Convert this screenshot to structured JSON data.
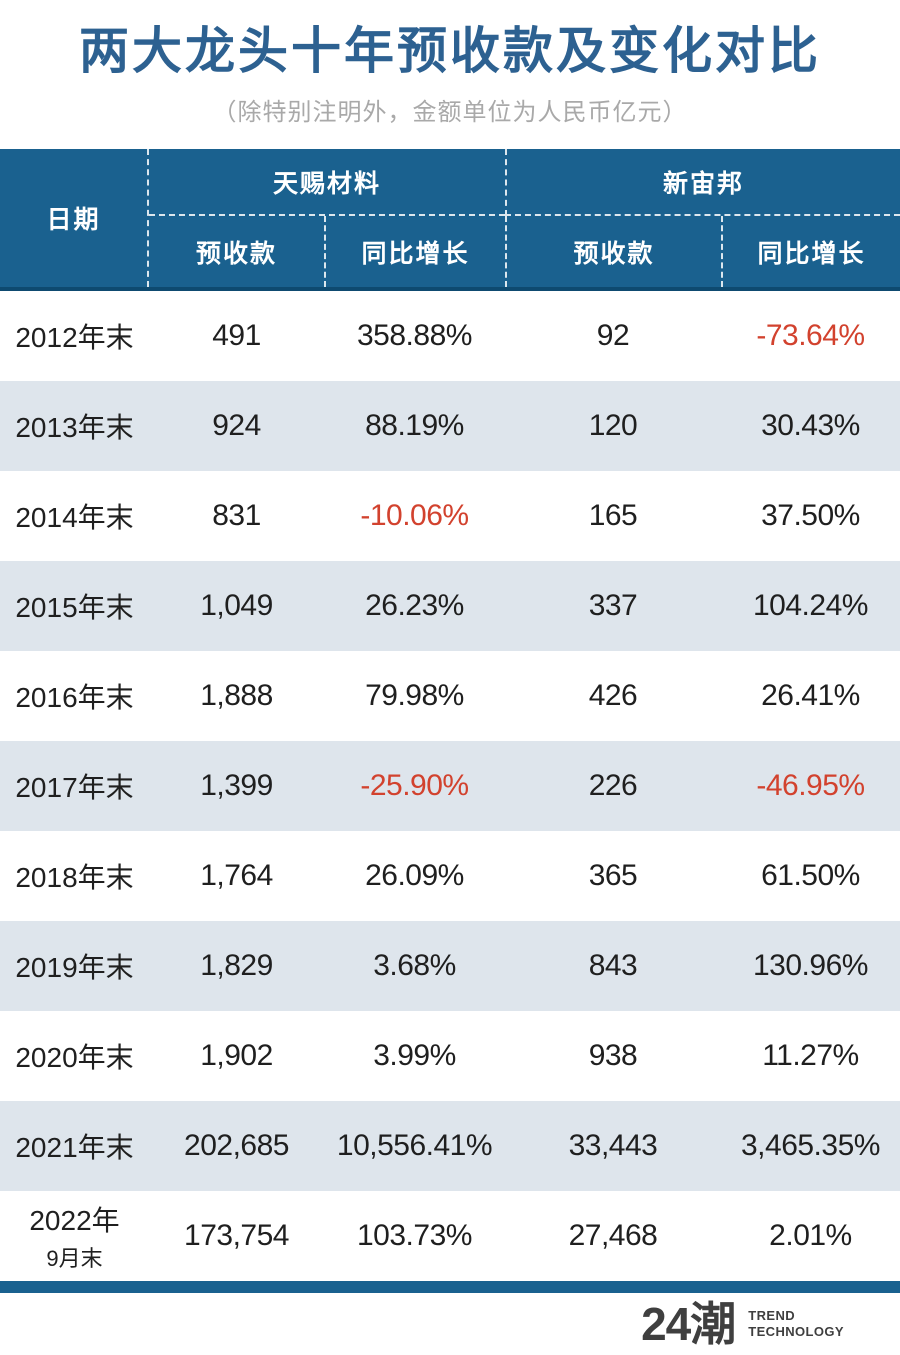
{
  "colors": {
    "title_blue": "#2d6191",
    "subtitle_gray": "#a9a9a9",
    "header_bg": "#1a618f",
    "header_border": "#0e4a70",
    "row_alt_bg": "#dee5ec",
    "text_dark": "#1f1f1f",
    "negative_red": "#d2422e",
    "bottom_bar": "#19618f",
    "logo_gray": "#3f3f3f"
  },
  "chart_data": {
    "type": "table",
    "title": "两大龙头十年预收款及变化对比",
    "subtitle": "（除特别注明外，金额单位为人民币亿元）",
    "date_header": "日期",
    "groups": [
      {
        "name": "天赐材料",
        "sub_columns": [
          "预收款",
          "同比增长"
        ]
      },
      {
        "name": "新宙邦",
        "sub_columns": [
          "预收款",
          "同比增长"
        ]
      }
    ],
    "rows": [
      {
        "date": "2012年末",
        "values": [
          "491",
          "358.88%",
          "92",
          "-73.64%"
        ]
      },
      {
        "date": "2013年末",
        "values": [
          "924",
          "88.19%",
          "120",
          "30.43%"
        ]
      },
      {
        "date": "2014年末",
        "values": [
          "831",
          "-10.06%",
          "165",
          "37.50%"
        ]
      },
      {
        "date": "2015年末",
        "values": [
          "1,049",
          "26.23%",
          "337",
          "104.24%"
        ]
      },
      {
        "date": "2016年末",
        "values": [
          "1,888",
          "79.98%",
          "426",
          "26.41%"
        ]
      },
      {
        "date": "2017年末",
        "values": [
          "1,399",
          "-25.90%",
          "226",
          "-46.95%"
        ]
      },
      {
        "date": "2018年末",
        "values": [
          "1,764",
          "26.09%",
          "365",
          "61.50%"
        ]
      },
      {
        "date": "2019年末",
        "values": [
          "1,829",
          "3.68%",
          "843",
          "130.96%"
        ]
      },
      {
        "date": "2020年末",
        "values": [
          "1,902",
          "3.99%",
          "938",
          "11.27%"
        ]
      },
      {
        "date": "2021年末",
        "values": [
          "202,685",
          "10,556.41%",
          "33,443",
          "3,465.35%"
        ]
      },
      {
        "date": "2022年",
        "date_line2": "9月末",
        "values": [
          "173,754",
          "103.73%",
          "27,468",
          "2.01%"
        ]
      }
    ]
  },
  "footer": {
    "logo_text": "24潮",
    "logo_line1": "TREND",
    "logo_line2": "TECHNOLOGY"
  }
}
